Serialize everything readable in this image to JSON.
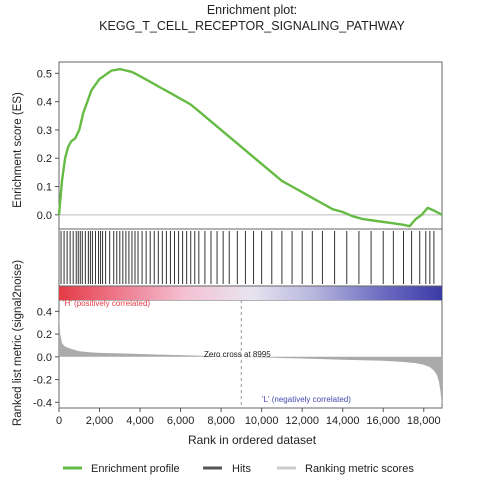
{
  "chart_data": {
    "type": "line",
    "title": "Enrichment plot:",
    "subtitle": "KEGG_T_CELL_RECEPTOR_SIGNALING_PATHWAY",
    "xlabel": "Rank in ordered dataset",
    "xlim": [
      0,
      18900
    ],
    "xticks": [
      0,
      2000,
      4000,
      6000,
      8000,
      10000,
      12000,
      14000,
      16000,
      18000
    ],
    "xtick_labels": [
      "0",
      "2,000",
      "4,000",
      "6,000",
      "8,000",
      "10,000",
      "12,000",
      "14,000",
      "16,000",
      "18,000"
    ],
    "es_panel": {
      "ylabel": "Enrichment score (ES)",
      "ylim": [
        -0.05,
        0.54
      ],
      "yticks": [
        0.0,
        0.1,
        0.2,
        0.3,
        0.4,
        0.5
      ],
      "ytick_labels": [
        "0.0",
        "0.1",
        "0.2",
        "0.3",
        "0.4",
        "0.5"
      ],
      "series": [
        {
          "name": "Enrichment profile",
          "color": "#66bb44",
          "x": [
            0,
            150,
            300,
            450,
            600,
            800,
            1000,
            1200,
            1400,
            1600,
            1800,
            2000,
            2200,
            2400,
            2600,
            2800,
            3000,
            3300,
            3600,
            4000,
            4500,
            5000,
            5500,
            6000,
            6500,
            7000,
            7500,
            8000,
            8500,
            9000,
            9500,
            10000,
            10500,
            11000,
            11500,
            12000,
            12500,
            13000,
            13500,
            14000,
            14500,
            15000,
            15500,
            16000,
            16500,
            17000,
            17300,
            17600,
            17900,
            18200,
            18500,
            18900
          ],
          "y": [
            0.0,
            0.12,
            0.2,
            0.24,
            0.26,
            0.27,
            0.3,
            0.36,
            0.4,
            0.44,
            0.46,
            0.48,
            0.49,
            0.5,
            0.51,
            0.512,
            0.515,
            0.51,
            0.505,
            0.49,
            0.47,
            0.45,
            0.43,
            0.41,
            0.39,
            0.36,
            0.33,
            0.3,
            0.27,
            0.24,
            0.21,
            0.18,
            0.15,
            0.12,
            0.1,
            0.08,
            0.06,
            0.04,
            0.02,
            0.01,
            -0.005,
            -0.015,
            -0.02,
            -0.025,
            -0.03,
            -0.035,
            -0.04,
            -0.015,
            0.0,
            0.025,
            0.015,
            0.0
          ]
        }
      ]
    },
    "hits_panel": {
      "legend_name": "Hits",
      "color": "#333333",
      "x": [
        100,
        250,
        400,
        550,
        700,
        850,
        950,
        1050,
        1150,
        1300,
        1450,
        1550,
        1650,
        1800,
        1950,
        2050,
        2150,
        2300,
        2500,
        2700,
        2850,
        3000,
        3150,
        3300,
        3450,
        3600,
        3750,
        3900,
        4100,
        4300,
        4500,
        4700,
        4900,
        5100,
        5300,
        5500,
        5700,
        5900,
        6100,
        6300,
        6500,
        6700,
        6900,
        7200,
        7500,
        7800,
        8100,
        8400,
        8800,
        9200,
        9600,
        10000,
        10500,
        11000,
        11500,
        12000,
        12500,
        13000,
        13600,
        14200,
        14800,
        15400,
        16000,
        16500,
        17000,
        17400,
        17800,
        18100,
        18300,
        18500
      ]
    },
    "gradient_bar": {
      "label_pos": "'H' (positively correlated)",
      "label_neg": "'L' (negatively correlated)",
      "colors": [
        "#e53a45",
        "#ef7e92",
        "#f4c2d4",
        "#e8e4f0",
        "#b6b6dd",
        "#7070c4",
        "#3a3aa6"
      ]
    },
    "metric_panel": {
      "ylabel": "Ranked list metric (signal2noise)",
      "ylim": [
        -0.45,
        0.5
      ],
      "yticks": [
        0.4,
        0.2,
        0.0,
        -0.2,
        -0.4
      ],
      "ytick_labels": [
        "0.4",
        "0.2",
        "0.0",
        "-0.2",
        "-0.4"
      ],
      "zero_cross_label": "Zero cross at 8995",
      "zero_cross": 8995,
      "legend_name": "Ranking metric scores",
      "color": "#aaaaaa",
      "x": [
        0,
        60,
        150,
        300,
        600,
        1000,
        1500,
        2000,
        3000,
        4000,
        5000,
        6000,
        7000,
        8000,
        8995,
        10000,
        11000,
        12000,
        13000,
        14000,
        15000,
        16000,
        17000,
        17600,
        18000,
        18300,
        18500,
        18650,
        18750,
        18820,
        18870,
        18900
      ],
      "y": [
        0.4,
        0.2,
        0.12,
        0.09,
        0.07,
        0.05,
        0.04,
        0.035,
        0.03,
        0.025,
        0.02,
        0.015,
        0.01,
        0.005,
        0.0,
        -0.005,
        -0.01,
        -0.015,
        -0.02,
        -0.025,
        -0.03,
        -0.035,
        -0.045,
        -0.055,
        -0.07,
        -0.09,
        -0.12,
        -0.16,
        -0.22,
        -0.3,
        -0.38,
        -0.42
      ]
    },
    "legend": {
      "placement": "bottom",
      "entries": [
        "Enrichment profile",
        "Hits",
        "Ranking metric scores"
      ]
    }
  }
}
